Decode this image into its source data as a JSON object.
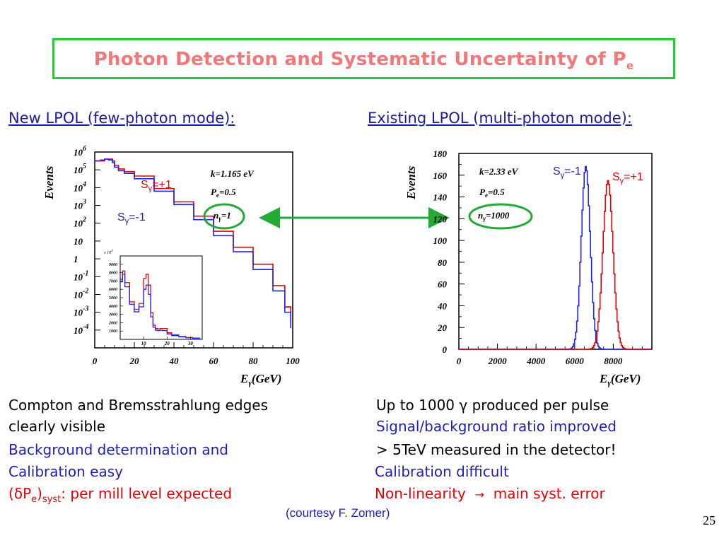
{
  "title": {
    "main": "Photon Detection and Systematic Uncertainty of P",
    "sub": "e"
  },
  "left": {
    "heading": "New LPOL (few-photon mode):",
    "lines": [
      "Compton and Bremsstrahlung edges",
      "clearly visible",
      "Background determination and",
      "Calibration easy"
    ],
    "syst": {
      "open": "(",
      "delta": "δ",
      "p": "P",
      "e": "e",
      "close": ")",
      "syst_sub": "syst",
      "rest": ": per mill level expected"
    }
  },
  "right": {
    "heading": "Existing LPOL (multi-photon mode):",
    "line1": {
      "pre": "Up to 1000 ",
      "gamma": "γ",
      "post": " produced per pulse"
    },
    "line2": "Signal/background ratio improved",
    "line3": "> 5TeV measured in the detector!",
    "line4": "Calibration difficult",
    "line5": {
      "a": "Non-linearity",
      "arrow": "→",
      "b": "main syst. error"
    }
  },
  "credit": "(courtesy F. Zomer)",
  "page_number": "25",
  "colors": {
    "title": "#f07878",
    "box": "#22cc33",
    "blue": "#2020b8",
    "red": "#e60000",
    "arrow": "#22aa33"
  },
  "chart_data": [
    {
      "type": "line",
      "xlabel": {
        "main": "E",
        "sub": "γ",
        "rest": "(GeV)"
      },
      "ylabel": "Events",
      "xlim": [
        0,
        100
      ],
      "x_ticks": [
        "0",
        "20",
        "40",
        "60",
        "80",
        "100"
      ],
      "y_scale": "log",
      "ylim_exp": [
        -5,
        6
      ],
      "y_tick_labels": [
        {
          "base": "10",
          "exp": "6"
        },
        {
          "base": "10",
          "exp": "5"
        },
        {
          "base": "10",
          "exp": "4"
        },
        {
          "base": "10",
          "exp": "3"
        },
        {
          "base": "10",
          "exp": "2"
        },
        {
          "base": "10",
          "exp": ""
        },
        {
          "base": "1",
          "exp": ""
        },
        {
          "base": "10",
          "exp": "-1"
        },
        {
          "base": "10",
          "exp": "-2"
        },
        {
          "base": "10",
          "exp": "-3"
        },
        {
          "base": "10",
          "exp": "-4"
        }
      ],
      "annotations": {
        "k": "k=1.165 eV",
        "pe": "P",
        "pe_sub": "e",
        "pe_val": "=0.5",
        "n": "n",
        "n_sub": "γ",
        "n_val": "=1"
      },
      "series": [
        {
          "name": "Sγ=+1",
          "label_main": "S",
          "label_sub": "γ",
          "label_rest": "=+1",
          "color": "#e60000",
          "x": [
            0,
            3,
            5,
            7,
            9,
            10,
            12,
            15,
            20,
            30,
            40,
            50,
            60,
            70,
            80,
            90,
            96,
            99
          ],
          "y_log10": [
            5.5,
            5.55,
            5.6,
            5.6,
            5.5,
            5.25,
            5.05,
            4.9,
            4.65,
            3.95,
            3.2,
            2.4,
            1.55,
            0.65,
            -0.3,
            -1.5,
            -2.7,
            -3.6
          ]
        },
        {
          "name": "Sγ=-1",
          "label_main": "S",
          "label_sub": "γ",
          "label_rest": "=-1",
          "color": "#2020ff",
          "x": [
            0,
            3,
            5,
            7,
            9,
            10,
            12,
            15,
            20,
            30,
            40,
            50,
            60,
            70,
            80,
            90,
            96,
            99
          ],
          "y_log10": [
            5.5,
            5.5,
            5.6,
            5.55,
            5.4,
            5.15,
            4.95,
            4.8,
            4.5,
            3.8,
            3.05,
            2.2,
            1.3,
            0.4,
            -0.6,
            -1.8,
            -3.0,
            -3.9
          ]
        }
      ],
      "inset": {
        "x_ticks": [
          "10",
          "20",
          "30"
        ],
        "y_ticks": [
          "9000",
          "8000",
          "7000",
          "6000",
          "5000",
          "4000",
          "3000",
          "2000",
          "1000"
        ],
        "y_exp_label": "x 10",
        "y_exp_sup": "4",
        "xlim": [
          0,
          35
        ],
        "ylim": [
          0,
          10000
        ],
        "series": [
          {
            "color": "#e60000",
            "x": [
              0,
              1,
              2,
              4,
              6,
              8,
              10,
              11,
              12,
              13,
              14,
              15,
              16,
              17,
              18,
              20,
              22,
              25,
              28,
              31,
              34
            ],
            "y": [
              7200,
              8200,
              6800,
              4500,
              3600,
              4300,
              7300,
              7800,
              6500,
              3200,
              1700,
              1300,
              1250,
              1300,
              1300,
              800,
              550,
              350,
              220,
              160,
              120
            ]
          },
          {
            "color": "#2020ff",
            "x": [
              0,
              1,
              2,
              4,
              6,
              8,
              10,
              11,
              12,
              13,
              14,
              15,
              16,
              17,
              18,
              20,
              22,
              25,
              28,
              31,
              34
            ],
            "y": [
              6900,
              7800,
              6300,
              4200,
              3300,
              3900,
              6000,
              6500,
              5400,
              2700,
              1450,
              1100,
              1050,
              1100,
              1050,
              650,
              450,
              300,
              190,
              130,
              100
            ]
          }
        ]
      }
    },
    {
      "type": "line",
      "xlabel": {
        "main": "E",
        "sub": "γ",
        "rest": "(GeV)"
      },
      "ylabel": "Events",
      "xlim": [
        0,
        10000
      ],
      "ylim": [
        0,
        180
      ],
      "x_ticks": [
        "0",
        "2000",
        "4000",
        "6000",
        "8000"
      ],
      "y_ticks": [
        "0",
        "20",
        "40",
        "60",
        "80",
        "100",
        "120",
        "140",
        "160",
        "180"
      ],
      "annotations": {
        "k": "k=2.33 eV",
        "pe": "P",
        "pe_sub": "e",
        "pe_val": "=0.5",
        "n": "n",
        "n_sub": "γ",
        "n_val": "=1000"
      },
      "series": [
        {
          "name": "Sγ=-1",
          "label_main": "S",
          "label_sub": "γ",
          "label_rest": "=-1",
          "color": "#2020ff",
          "mean": 6550,
          "sigma": 230,
          "peak": 168
        },
        {
          "name": "Sγ=+1",
          "label_main": "S",
          "label_sub": "γ",
          "label_rest": "=+1",
          "color": "#e60000",
          "mean": 7700,
          "sigma": 260,
          "peak": 155
        }
      ]
    }
  ]
}
